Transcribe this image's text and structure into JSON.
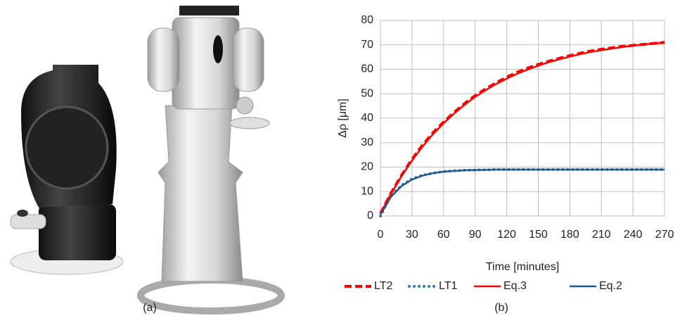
{
  "panel_a_label": "(a)",
  "chart_data": {
    "type": "line",
    "panel_label": "(b)",
    "xlabel": "Time [minutes]",
    "ylabel": "Δρ  [μm]",
    "x": [
      0,
      10,
      20,
      30,
      40,
      50,
      60,
      70,
      80,
      90,
      100,
      110,
      120,
      130,
      140,
      150,
      160,
      170,
      180,
      190,
      200,
      210,
      220,
      230,
      240,
      250,
      260,
      270
    ],
    "xlim": [
      0,
      270
    ],
    "xticks": [
      0,
      30,
      60,
      90,
      120,
      150,
      180,
      210,
      240,
      270
    ],
    "ylim": [
      0,
      80
    ],
    "yticks": [
      0,
      10,
      20,
      30,
      40,
      50,
      60,
      70,
      80
    ],
    "grid": true,
    "series": [
      {
        "name": "LT2",
        "color": "#ff0000",
        "style": "dashed",
        "values": [
          1,
          9.3,
          16.6,
          23.2,
          29,
          34.1,
          38.4,
          42.4,
          46,
          49.2,
          52,
          54.5,
          56.8,
          58.8,
          60.5,
          62,
          63.3,
          64.5,
          65.6,
          66.6,
          67.5,
          68.2,
          68.8,
          69.4,
          69.8,
          70.2,
          70.6,
          71
        ]
      },
      {
        "name": "LT1",
        "color": "#2e75b6",
        "style": "dotted",
        "values": [
          0,
          8.3,
          12.5,
          15.2,
          16.7,
          17.6,
          18.2,
          18.5,
          18.7,
          18.8,
          18.9,
          19,
          19,
          19,
          19,
          19,
          19,
          19,
          19,
          19,
          19,
          19,
          19,
          19,
          19,
          19,
          19,
          19
        ]
      },
      {
        "name": "Eq.3",
        "color": "#ff0000",
        "style": "solid",
        "values": [
          1,
          9.1,
          16.3,
          22.7,
          28.4,
          33.5,
          37.9,
          41.9,
          45.5,
          48.7,
          51.5,
          54,
          56.2,
          58.2,
          59.9,
          61.5,
          62.9,
          64.1,
          65.2,
          66.2,
          67.1,
          67.8,
          68.5,
          69.1,
          69.7,
          70.1,
          70.6,
          70.9
        ]
      },
      {
        "name": "Eq.2",
        "color": "#1f5a8a",
        "style": "solid",
        "values": [
          0.5,
          7.8,
          12.2,
          14.9,
          16.5,
          17.5,
          18.1,
          18.4,
          18.7,
          18.8,
          18.9,
          19,
          19,
          19,
          19,
          19,
          19,
          19,
          19,
          19,
          19,
          19,
          19,
          19,
          19,
          19,
          19,
          19
        ]
      }
    ]
  }
}
